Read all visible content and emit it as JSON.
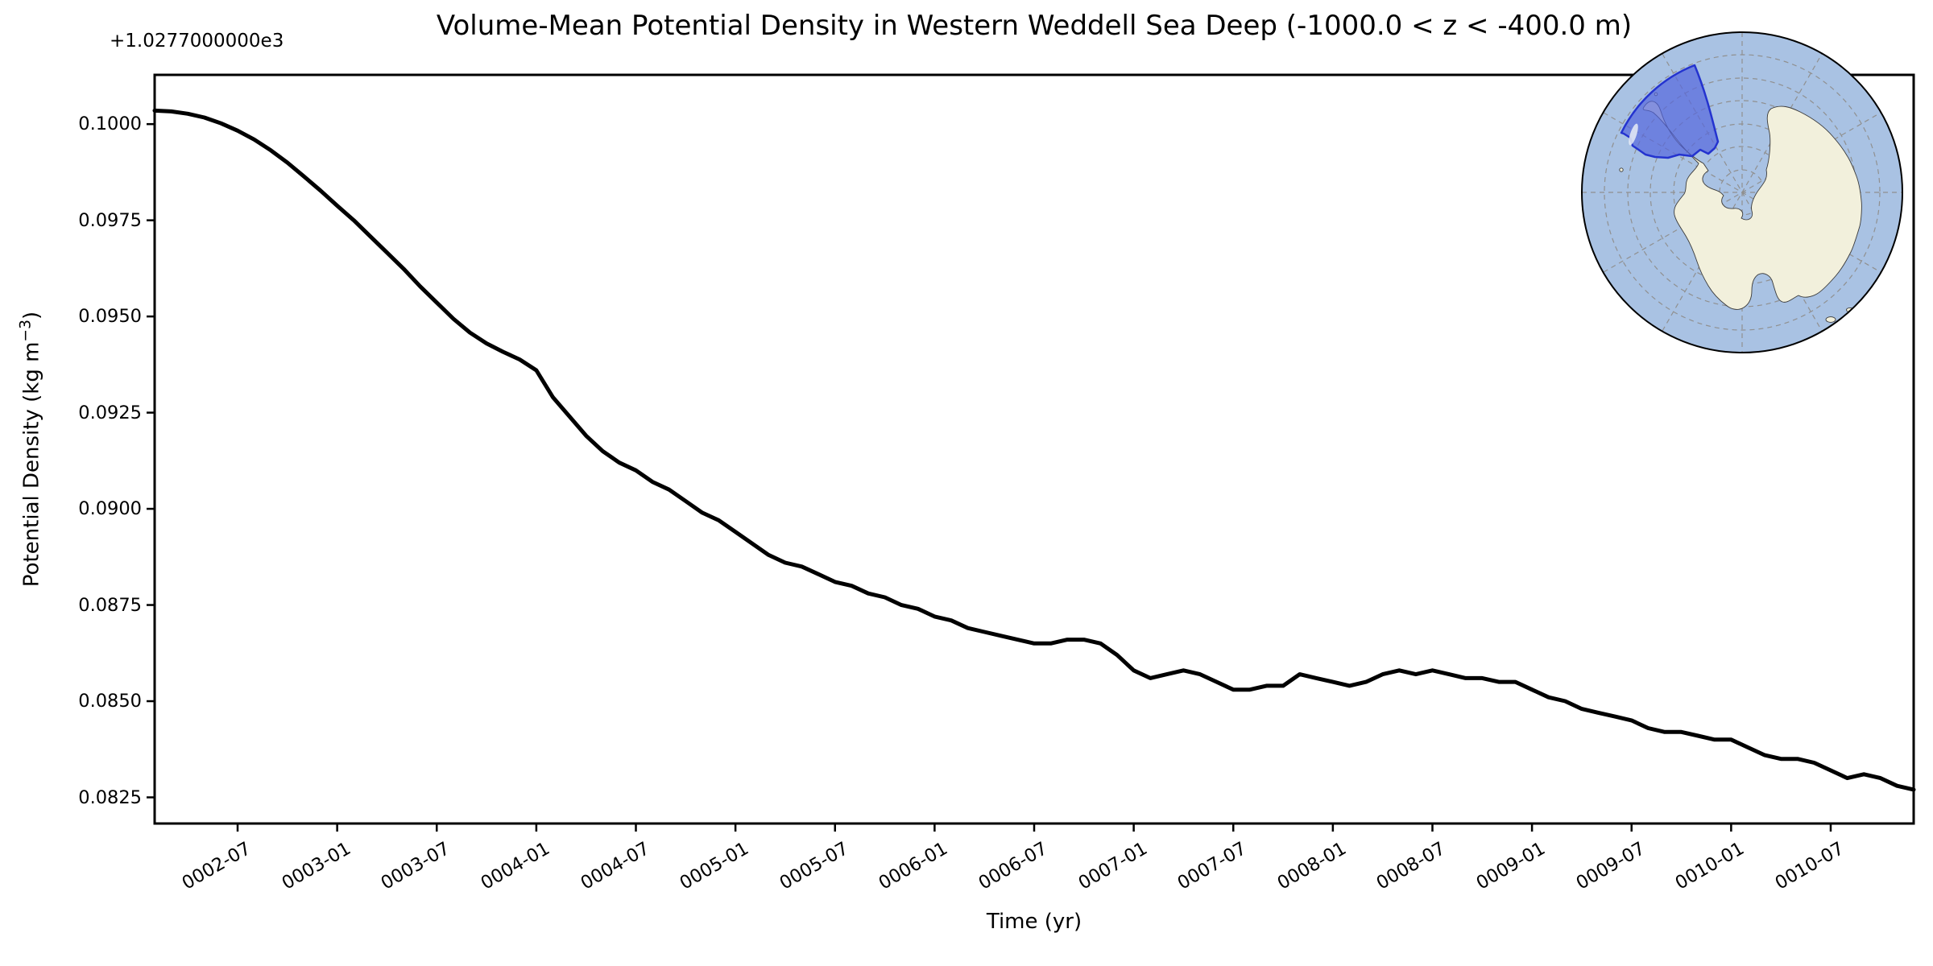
{
  "figure": {
    "title": "Volume-Mean Potential Density in Western Weddell Sea Deep (-1000.0 < z < -400.0 m)",
    "offset_text": "+1.0277000000e3",
    "xlabel": "Time (yr)",
    "ylabel_parts": {
      "pre": "Potential Density (kg m",
      "sup": "−3",
      "post": ")"
    }
  },
  "chart_data": {
    "type": "line",
    "title": "Volume-Mean Potential Density in Western Weddell Sea Deep (-1000.0 < z < -400.0 m)",
    "xlabel": "Time (yr)",
    "ylabel": "Potential Density (kg m-3)",
    "y_offset": "+1.0277000000e3 (axis values are relative to 1027.7 kg m-3)",
    "line_color": "#000000",
    "line_width": 5,
    "grid": false,
    "legend": null,
    "ylim": [
      0.08182,
      0.10128
    ],
    "y_tick_labels": [
      "0.1000",
      "0.0975",
      "0.0950",
      "0.0925",
      "0.0900",
      "0.0875",
      "0.0850",
      "0.0825"
    ],
    "x_tick_labels": [
      "0002-07",
      "0003-01",
      "0003-07",
      "0004-01",
      "0004-07",
      "0005-01",
      "0005-07",
      "0006-01",
      "0006-07",
      "0007-01",
      "0007-07",
      "0008-01",
      "0008-07",
      "0009-01",
      "0009-07",
      "0010-01",
      "0010-07"
    ],
    "x": [
      "0002-02",
      "0002-03",
      "0002-04",
      "0002-05",
      "0002-06",
      "0002-07",
      "0002-08",
      "0002-09",
      "0002-10",
      "0002-11",
      "0002-12",
      "0003-01",
      "0003-02",
      "0003-03",
      "0003-04",
      "0003-05",
      "0003-06",
      "0003-07",
      "0003-08",
      "0003-09",
      "0003-10",
      "0003-11",
      "0003-12",
      "0004-01",
      "0004-02",
      "0004-03",
      "0004-04",
      "0004-05",
      "0004-06",
      "0004-07",
      "0004-08",
      "0004-09",
      "0004-10",
      "0004-11",
      "0004-12",
      "0005-01",
      "0005-02",
      "0005-03",
      "0005-04",
      "0005-05",
      "0005-06",
      "0005-07",
      "0005-08",
      "0005-09",
      "0005-10",
      "0005-11",
      "0005-12",
      "0006-01",
      "0006-02",
      "0006-03",
      "0006-04",
      "0006-05",
      "0006-06",
      "0006-07",
      "0006-08",
      "0006-09",
      "0006-10",
      "0006-11",
      "0006-12",
      "0007-01",
      "0007-02",
      "0007-03",
      "0007-04",
      "0007-05",
      "0007-06",
      "0007-07",
      "0007-08",
      "0007-09",
      "0007-10",
      "0007-11",
      "0007-12",
      "0008-01",
      "0008-02",
      "0008-03",
      "0008-04",
      "0008-05",
      "0008-06",
      "0008-07",
      "0008-08",
      "0008-09",
      "0008-10",
      "0008-11",
      "0008-12",
      "0009-01",
      "0009-02",
      "0009-03",
      "0009-04",
      "0009-05",
      "0009-06",
      "0009-07",
      "0009-08",
      "0009-09",
      "0009-10",
      "0009-11",
      "0009-12",
      "0010-01",
      "0010-02",
      "0010-03",
      "0010-04",
      "0010-05",
      "0010-06",
      "0010-07",
      "0010-08",
      "0010-09",
      "0010-10",
      "0010-11",
      "0010-12"
    ],
    "values": [
      0.10035,
      0.10033,
      0.10027,
      0.10017,
      0.10002,
      0.09983,
      0.0996,
      0.09932,
      0.099,
      0.09864,
      0.09827,
      0.09788,
      0.0975,
      0.09708,
      0.09666,
      0.09624,
      0.09578,
      0.09536,
      0.09494,
      0.09458,
      0.0943,
      0.09408,
      0.09388,
      0.0936,
      0.0929,
      0.0924,
      0.0919,
      0.0915,
      0.0912,
      0.091,
      0.0907,
      0.0905,
      0.0902,
      0.0899,
      0.0897,
      0.0894,
      0.0891,
      0.0888,
      0.0886,
      0.0885,
      0.0883,
      0.0881,
      0.088,
      0.0878,
      0.0877,
      0.0875,
      0.0874,
      0.0872,
      0.0871,
      0.0869,
      0.0868,
      0.0867,
      0.0866,
      0.0865,
      0.0865,
      0.0866,
      0.0866,
      0.0865,
      0.0862,
      0.0858,
      0.0856,
      0.0857,
      0.0858,
      0.0857,
      0.0855,
      0.0853,
      0.0853,
      0.0854,
      0.0854,
      0.0857,
      0.0856,
      0.0855,
      0.0854,
      0.0855,
      0.0857,
      0.0858,
      0.0857,
      0.0858,
      0.0857,
      0.0856,
      0.0856,
      0.0855,
      0.0855,
      0.0853,
      0.0851,
      0.085,
      0.0848,
      0.0847,
      0.0846,
      0.0845,
      0.0843,
      0.0842,
      0.0842,
      0.0841,
      0.084,
      0.084,
      0.0838,
      0.0836,
      0.0835,
      0.0835,
      0.0834,
      0.0832,
      0.083,
      0.0831,
      0.083,
      0.0828,
      0.0827
    ]
  },
  "inset_map": {
    "name": "south-polar-stereographic-antarctica-inset",
    "ocean_color": "#a9c2e3",
    "land_color": "#f2f0dc",
    "coast_color": "#3a3a3a",
    "graticule_color": "#909090",
    "circle_edge_color": "#000000",
    "region_fill": "#5566dd",
    "region_fill_opacity": "0.70",
    "region_border": "#2433cf"
  }
}
